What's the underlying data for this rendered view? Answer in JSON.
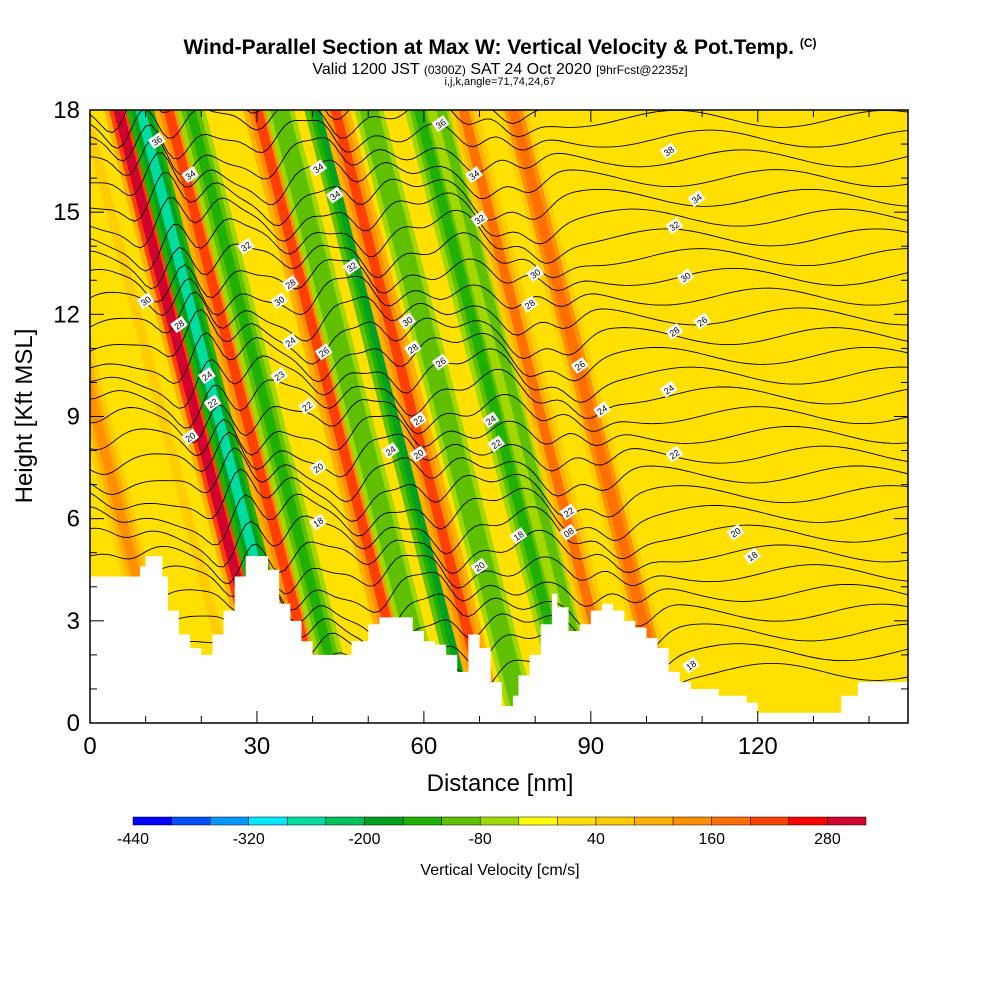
{
  "title": {
    "main": "Wind-Parallel Section at Max W: Vertical Velocity & Pot.Temp.",
    "mark": "(C)"
  },
  "subtitle": {
    "valid": "Valid 1200 JST",
    "utc": "(0300Z)",
    "date": "SAT 24 Oct 2020",
    "fcst": "[9hrFcst@2235z]"
  },
  "subtitle2": "i,j,k,angle=71,74,24,67",
  "chart_data": {
    "type": "heatmap",
    "xlabel": "Distance [nm]",
    "ylabel": "Height [Kft MSL]",
    "xlim": [
      0,
      147
    ],
    "ylim": [
      0,
      18
    ],
    "x_ticks": [
      0,
      30,
      60,
      90,
      120
    ],
    "y_ticks": [
      0,
      3,
      6,
      9,
      12,
      15,
      18
    ],
    "colorbar": {
      "label": "Vertical Velocity [cm/s]",
      "min": -440,
      "max": 320,
      "step": 40,
      "tick_labels": [
        -440,
        -320,
        -200,
        -80,
        40,
        160,
        280
      ],
      "colors": [
        "#0000ff",
        "#0050ff",
        "#0098ff",
        "#00e8ff",
        "#00dca0",
        "#00c060",
        "#00a020",
        "#20b000",
        "#60c000",
        "#a0d800",
        "#ffff00",
        "#ffe000",
        "#ffcc00",
        "#ffb000",
        "#ff9000",
        "#ff7000",
        "#ff4000",
        "#ff0000",
        "#d00030",
        "#a00060",
        "#6a00a0"
      ]
    },
    "w_bands": [
      {
        "center_bottom": 15,
        "w": 120
      },
      {
        "center_bottom": 27,
        "w": 50
      },
      {
        "center_bottom": 33,
        "w": 300
      },
      {
        "center_bottom": 37,
        "w": -280
      },
      {
        "center_bottom": 42,
        "w": 200
      },
      {
        "center_bottom": 46,
        "w": -150
      },
      {
        "center_bottom": 58,
        "w": 220
      },
      {
        "center_bottom": 62,
        "w": -120
      },
      {
        "center_bottom": 69,
        "w": -180
      },
      {
        "center_bottom": 72,
        "w": 200
      },
      {
        "center_bottom": 78,
        "w": -110
      },
      {
        "center_bottom": 87,
        "w": -150
      },
      {
        "center_bottom": 91,
        "w": -100
      },
      {
        "center_bottom": 95,
        "w": 160
      },
      {
        "center_bottom": 104,
        "w": 180
      }
    ],
    "terrain": [
      [
        0,
        4.3
      ],
      [
        7,
        4.3
      ],
      [
        9,
        4.6
      ],
      [
        10,
        4.9
      ],
      [
        12,
        4.9
      ],
      [
        13,
        4.3
      ],
      [
        14,
        3.3
      ],
      [
        16,
        2.6
      ],
      [
        18,
        2.2
      ],
      [
        20,
        2.0
      ],
      [
        22,
        2.6
      ],
      [
        24,
        3.3
      ],
      [
        26,
        4.3
      ],
      [
        28,
        4.9
      ],
      [
        30,
        4.9
      ],
      [
        32,
        4.5
      ],
      [
        34,
        3.5
      ],
      [
        36,
        3.0
      ],
      [
        38,
        2.4
      ],
      [
        40,
        2.0
      ],
      [
        44,
        2.0
      ],
      [
        47,
        2.4
      ],
      [
        50,
        2.9
      ],
      [
        52,
        3.1
      ],
      [
        55,
        3.1
      ],
      [
        58,
        2.7
      ],
      [
        60,
        2.4
      ],
      [
        62,
        2.3
      ],
      [
        64,
        2.0
      ],
      [
        66,
        1.5
      ],
      [
        68,
        2.6
      ],
      [
        70,
        2.2
      ],
      [
        72,
        1.2
      ],
      [
        74,
        0.5
      ],
      [
        76,
        0.8
      ],
      [
        77,
        1.4
      ],
      [
        79,
        2.0
      ],
      [
        81,
        2.9
      ],
      [
        83,
        3.8
      ],
      [
        84,
        3.4
      ],
      [
        86,
        2.7
      ],
      [
        88,
        2.9
      ],
      [
        90,
        3.3
      ],
      [
        92,
        3.5
      ],
      [
        94,
        3.3
      ],
      [
        96,
        3.0
      ],
      [
        98,
        2.8
      ],
      [
        100,
        2.5
      ],
      [
        102,
        2.2
      ],
      [
        104,
        1.5
      ],
      [
        106,
        1.2
      ],
      [
        108,
        1.0
      ],
      [
        113,
        0.8
      ],
      [
        118,
        0.6
      ],
      [
        120,
        0.3
      ],
      [
        126,
        0.3
      ],
      [
        133,
        0.3
      ],
      [
        135,
        0.8
      ],
      [
        138,
        1.2
      ],
      [
        141,
        1.2
      ],
      [
        147,
        1.2
      ]
    ],
    "contour_labels": [
      {
        "x": 12,
        "y": 17.1,
        "text": "36"
      },
      {
        "x": 18,
        "y": 16.1,
        "text": "34"
      },
      {
        "x": 28,
        "y": 14.0,
        "text": "32"
      },
      {
        "x": 10,
        "y": 12.4,
        "text": "30"
      },
      {
        "x": 16,
        "y": 11.7,
        "text": "28"
      },
      {
        "x": 21,
        "y": 10.2,
        "text": "24"
      },
      {
        "x": 22,
        "y": 9.4,
        "text": "22"
      },
      {
        "x": 18,
        "y": 8.4,
        "text": "20"
      },
      {
        "x": 41,
        "y": 16.3,
        "text": "34"
      },
      {
        "x": 44,
        "y": 15.5,
        "text": "34"
      },
      {
        "x": 47,
        "y": 13.4,
        "text": "32"
      },
      {
        "x": 36,
        "y": 12.9,
        "text": "28"
      },
      {
        "x": 34,
        "y": 12.4,
        "text": "30"
      },
      {
        "x": 36,
        "y": 11.2,
        "text": "24"
      },
      {
        "x": 34,
        "y": 10.2,
        "text": "23"
      },
      {
        "x": 42,
        "y": 10.9,
        "text": "26"
      },
      {
        "x": 39,
        "y": 9.3,
        "text": "22"
      },
      {
        "x": 41,
        "y": 7.5,
        "text": "20"
      },
      {
        "x": 41,
        "y": 5.9,
        "text": "18"
      },
      {
        "x": 63,
        "y": 17.6,
        "text": "36"
      },
      {
        "x": 69,
        "y": 16.1,
        "text": "34"
      },
      {
        "x": 70,
        "y": 14.8,
        "text": "32"
      },
      {
        "x": 80,
        "y": 13.2,
        "text": "30"
      },
      {
        "x": 79,
        "y": 12.3,
        "text": "28"
      },
      {
        "x": 57,
        "y": 11.8,
        "text": "30"
      },
      {
        "x": 58,
        "y": 11.0,
        "text": "28"
      },
      {
        "x": 63,
        "y": 10.6,
        "text": "26"
      },
      {
        "x": 59,
        "y": 8.9,
        "text": "22"
      },
      {
        "x": 54,
        "y": 8.0,
        "text": "24"
      },
      {
        "x": 59,
        "y": 7.9,
        "text": "20"
      },
      {
        "x": 72,
        "y": 8.9,
        "text": "24"
      },
      {
        "x": 73,
        "y": 8.2,
        "text": "22"
      },
      {
        "x": 70,
        "y": 4.6,
        "text": "20"
      },
      {
        "x": 77,
        "y": 5.5,
        "text": "18"
      },
      {
        "x": 86,
        "y": 6.2,
        "text": "22"
      },
      {
        "x": 86,
        "y": 5.6,
        "text": "08"
      },
      {
        "x": 88,
        "y": 10.5,
        "text": "26"
      },
      {
        "x": 92,
        "y": 9.2,
        "text": "24"
      },
      {
        "x": 104,
        "y": 16.8,
        "text": "38"
      },
      {
        "x": 109,
        "y": 15.4,
        "text": "34"
      },
      {
        "x": 105,
        "y": 14.6,
        "text": "32"
      },
      {
        "x": 107,
        "y": 13.1,
        "text": "30"
      },
      {
        "x": 110,
        "y": 11.8,
        "text": "26"
      },
      {
        "x": 105,
        "y": 11.5,
        "text": "28"
      },
      {
        "x": 104,
        "y": 9.8,
        "text": "24"
      },
      {
        "x": 105,
        "y": 7.9,
        "text": "22"
      },
      {
        "x": 116,
        "y": 5.6,
        "text": "20"
      },
      {
        "x": 119,
        "y": 4.9,
        "text": "18"
      },
      {
        "x": 108,
        "y": 1.7,
        "text": "18"
      }
    ]
  }
}
